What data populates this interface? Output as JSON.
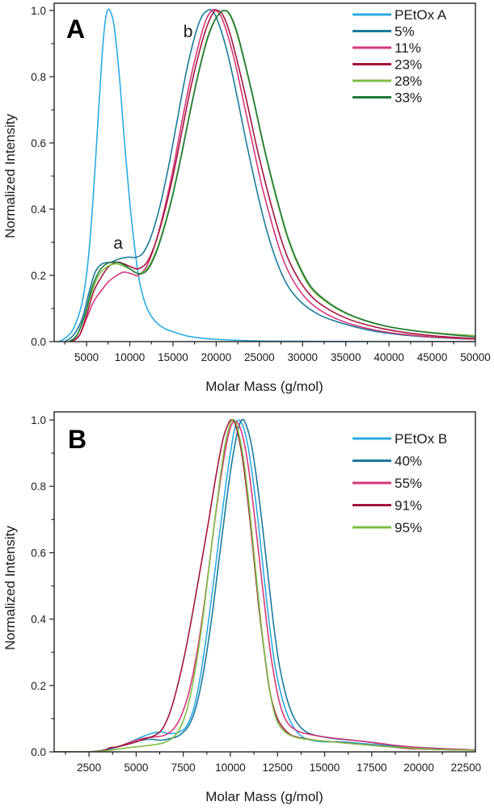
{
  "chart_data": [
    {
      "panel": "A",
      "type": "line",
      "title": "",
      "xlabel": "Molar Mass (g/mol)",
      "ylabel": "Normalized Intensity",
      "xlim": [
        1250,
        50000
      ],
      "ylim": [
        0,
        1.0
      ],
      "xticks": [
        5000,
        10000,
        15000,
        20000,
        25000,
        30000,
        35000,
        40000,
        45000,
        50000
      ],
      "xtick_labels": [
        "5000",
        "10000",
        "15000",
        "20000",
        "25000",
        "30000",
        "35000",
        "40000",
        "45000",
        "50000"
      ],
      "xminor": [
        2500,
        7500,
        12500,
        17500,
        22500,
        27500,
        32500,
        37500,
        42500,
        47500
      ],
      "yticks": [
        0.0,
        0.2,
        0.4,
        0.6,
        0.8,
        1.0
      ],
      "ytick_labels": [
        "0.0",
        "0.2",
        "0.4",
        "0.6",
        "0.8",
        "1.0"
      ],
      "yminor": [
        0.1,
        0.3,
        0.5,
        0.7,
        0.9
      ],
      "legend_position": "top-right",
      "annotations": [
        {
          "text": "A",
          "role": "panel-label",
          "position": "top-left"
        },
        {
          "text": "a",
          "x": 8100,
          "y": 0.28
        },
        {
          "text": "b",
          "x": 16200,
          "y": 0.92
        }
      ],
      "series": [
        {
          "name": "PEtOx A",
          "color": "#29ABE2",
          "x": [
            1800,
            2500,
            3500,
            4500,
            5200,
            5800,
            6400,
            6900,
            7300,
            7700,
            8200,
            8800,
            9400,
            10000,
            10500,
            11000,
            11600,
            12200,
            13000,
            14000,
            15000,
            17000,
            20000,
            25000,
            30000,
            40000,
            50000
          ],
          "y": [
            0.0,
            0.01,
            0.04,
            0.12,
            0.25,
            0.45,
            0.7,
            0.9,
            0.99,
            1.0,
            0.95,
            0.8,
            0.6,
            0.42,
            0.3,
            0.2,
            0.13,
            0.09,
            0.06,
            0.04,
            0.03,
            0.015,
            0.007,
            0.002,
            0.001,
            0.0,
            0.0
          ]
        },
        {
          "name": "5%",
          "color": "#1A7A9C",
          "x": [
            2500,
            3500,
            4500,
            5300,
            6000,
            6800,
            7800,
            8800,
            9800,
            10800,
            11600,
            12500,
            13500,
            14500,
            15500,
            16500,
            17500,
            18300,
            19000,
            19500,
            20000,
            20800,
            21600,
            22500,
            23500,
            24500,
            25500,
            26500,
            27500,
            28500,
            30000,
            32000,
            34000,
            36000,
            38000,
            40000,
            42000,
            45000,
            48000,
            50000
          ],
          "y": [
            0.0,
            0.02,
            0.07,
            0.15,
            0.21,
            0.235,
            0.24,
            0.25,
            0.255,
            0.255,
            0.27,
            0.32,
            0.41,
            0.53,
            0.67,
            0.81,
            0.92,
            0.98,
            1.0,
            1.0,
            0.98,
            0.92,
            0.84,
            0.73,
            0.6,
            0.48,
            0.37,
            0.28,
            0.21,
            0.16,
            0.115,
            0.08,
            0.06,
            0.045,
            0.033,
            0.025,
            0.019,
            0.013,
            0.009,
            0.008
          ]
        },
        {
          "name": "11%",
          "color": "#D6377A",
          "x": [
            3300,
            4200,
            5000,
            5800,
            6600,
            7500,
            8500,
            9300,
            10200,
            11000,
            12000,
            13000,
            14000,
            15000,
            16000,
            17000,
            18000,
            18800,
            19500,
            20000,
            20600,
            21400,
            22300,
            23200,
            24200,
            25200,
            26200,
            27200,
            28200,
            29500,
            31000,
            33000,
            35000,
            37000,
            39000,
            41000,
            44000,
            47000,
            50000
          ],
          "y": [
            0.0,
            0.02,
            0.07,
            0.12,
            0.15,
            0.18,
            0.2,
            0.21,
            0.205,
            0.2,
            0.23,
            0.3,
            0.4,
            0.52,
            0.66,
            0.79,
            0.9,
            0.97,
            1.0,
            1.0,
            0.98,
            0.92,
            0.83,
            0.72,
            0.6,
            0.48,
            0.38,
            0.29,
            0.22,
            0.16,
            0.115,
            0.08,
            0.058,
            0.043,
            0.032,
            0.024,
            0.016,
            0.011,
            0.007
          ]
        },
        {
          "name": "23%",
          "color": "#A3163C",
          "x": [
            3300,
            4200,
            5000,
            5800,
            6600,
            7500,
            8500,
            9300,
            10200,
            11000,
            12000,
            13000,
            14000,
            15000,
            16000,
            17000,
            18000,
            18900,
            19700,
            20200,
            20800,
            21600,
            22500,
            23500,
            24500,
            25500,
            26500,
            27500,
            28500,
            30000,
            31500,
            33500,
            35500,
            37500,
            39500,
            42000,
            45000,
            48000,
            50000
          ],
          "y": [
            0.0,
            0.02,
            0.08,
            0.15,
            0.19,
            0.225,
            0.24,
            0.235,
            0.225,
            0.22,
            0.24,
            0.3,
            0.39,
            0.5,
            0.63,
            0.76,
            0.87,
            0.95,
            0.995,
            1.0,
            0.985,
            0.93,
            0.84,
            0.73,
            0.61,
            0.5,
            0.4,
            0.31,
            0.24,
            0.17,
            0.125,
            0.09,
            0.066,
            0.05,
            0.038,
            0.027,
            0.018,
            0.012,
            0.009
          ]
        },
        {
          "name": "28%",
          "color": "#7DBE43",
          "x": [
            3000,
            3900,
            4800,
            5600,
            6400,
            7300,
            8300,
            9100,
            10000,
            11000,
            12000,
            13000,
            14000,
            15000,
            16000,
            17000,
            18000,
            19000,
            19800,
            20500,
            21000,
            21600,
            22400,
            23300,
            24300,
            25300,
            26300,
            27300,
            28300,
            29500,
            31000,
            33000,
            35000,
            37000,
            39000,
            41000,
            44000,
            47000,
            50000
          ],
          "y": [
            0.0,
            0.02,
            0.08,
            0.15,
            0.2,
            0.225,
            0.235,
            0.23,
            0.22,
            0.205,
            0.22,
            0.27,
            0.35,
            0.45,
            0.57,
            0.7,
            0.82,
            0.92,
            0.97,
            0.995,
            1.0,
            0.985,
            0.93,
            0.84,
            0.73,
            0.61,
            0.5,
            0.4,
            0.31,
            0.23,
            0.16,
            0.115,
            0.085,
            0.065,
            0.05,
            0.04,
            0.03,
            0.023,
            0.018
          ]
        },
        {
          "name": "33%",
          "color": "#1F7A3A",
          "x": [
            3000,
            3900,
            4800,
            5600,
            6400,
            7300,
            8300,
            9100,
            10000,
            11000,
            12000,
            13000,
            14000,
            15000,
            16000,
            17000,
            18000,
            19000,
            19800,
            20500,
            21000,
            21600,
            22400,
            23300,
            24300,
            25300,
            26300,
            27300,
            28300,
            29500,
            31000,
            33000,
            35000,
            37000,
            39000,
            41000,
            44000,
            47000,
            50000
          ],
          "y": [
            0.0,
            0.02,
            0.08,
            0.16,
            0.21,
            0.235,
            0.24,
            0.235,
            0.22,
            0.205,
            0.215,
            0.265,
            0.345,
            0.445,
            0.565,
            0.695,
            0.815,
            0.915,
            0.968,
            0.994,
            1.0,
            0.988,
            0.935,
            0.845,
            0.735,
            0.615,
            0.505,
            0.405,
            0.315,
            0.235,
            0.165,
            0.118,
            0.087,
            0.066,
            0.051,
            0.04,
            0.029,
            0.021,
            0.014
          ]
        }
      ]
    },
    {
      "panel": "B",
      "type": "line",
      "title": "",
      "xlabel": "Molar Mass (g/mol)",
      "ylabel": "Normalized Intensity",
      "xlim": [
        650,
        23000
      ],
      "ylim": [
        0,
        1.0
      ],
      "xticks": [
        2500,
        5000,
        7500,
        10000,
        12500,
        15000,
        17500,
        20000,
        22500
      ],
      "xtick_labels": [
        "2500",
        "5000",
        "7500",
        "10000",
        "12500",
        "15000",
        "17500",
        "20000",
        "22500"
      ],
      "xminor": [
        1250,
        3750,
        6250,
        8750,
        11250,
        13750,
        16250,
        18750,
        21250
      ],
      "yticks": [
        0.0,
        0.2,
        0.4,
        0.6,
        0.8,
        1.0
      ],
      "ytick_labels": [
        "0.0",
        "0.2",
        "0.4",
        "0.6",
        "0.8",
        "1.0"
      ],
      "yminor": [
        0.1,
        0.3,
        0.5,
        0.7,
        0.9
      ],
      "legend_position": "top-right",
      "annotations": [
        {
          "text": "B",
          "role": "panel-label",
          "position": "top-left"
        }
      ],
      "series": [
        {
          "name": "PEtOx B",
          "color": "#29ABE2",
          "x": [
            700,
            2500,
            3300,
            4000,
            4700,
            5300,
            5800,
            6300,
            6800,
            7300,
            7700,
            8100,
            8500,
            8900,
            9300,
            9700,
            10000,
            10300,
            10600,
            10900,
            11200,
            11500,
            11800,
            12100,
            12400,
            12800,
            13200,
            13700,
            14300,
            15000,
            16000,
            17000,
            18000,
            19000,
            20000,
            21000,
            23000
          ],
          "y": [
            0.0,
            0.0,
            0.005,
            0.015,
            0.03,
            0.045,
            0.055,
            0.06,
            0.055,
            0.06,
            0.08,
            0.14,
            0.26,
            0.42,
            0.6,
            0.78,
            0.9,
            0.99,
            0.99,
            0.93,
            0.82,
            0.68,
            0.52,
            0.37,
            0.25,
            0.15,
            0.09,
            0.05,
            0.035,
            0.03,
            0.03,
            0.025,
            0.02,
            0.015,
            0.012,
            0.008,
            0.005
          ]
        },
        {
          "name": "40%",
          "color": "#1A7A9C",
          "x": [
            700,
            2500,
            3300,
            4000,
            4700,
            5300,
            5800,
            6300,
            6800,
            7300,
            7800,
            8200,
            8600,
            9000,
            9400,
            9800,
            10100,
            10400,
            10600,
            10800,
            11100,
            11400,
            11700,
            12000,
            12300,
            12600,
            13000,
            13400,
            13900,
            14500,
            15500,
            16500,
            17500,
            18500,
            19500,
            20500,
            21500,
            23000
          ],
          "y": [
            0.0,
            0.0,
            0.005,
            0.015,
            0.025,
            0.035,
            0.038,
            0.035,
            0.04,
            0.05,
            0.08,
            0.14,
            0.25,
            0.4,
            0.58,
            0.76,
            0.88,
            0.97,
            1.0,
            0.99,
            0.93,
            0.82,
            0.68,
            0.53,
            0.38,
            0.26,
            0.16,
            0.1,
            0.065,
            0.05,
            0.04,
            0.035,
            0.028,
            0.02,
            0.015,
            0.012,
            0.009,
            0.006
          ]
        },
        {
          "name": "55%",
          "color": "#D6377A",
          "x": [
            700,
            2500,
            3300,
            3600,
            4000,
            4500,
            5000,
            5500,
            6000,
            6500,
            7000,
            7400,
            7800,
            8200,
            8600,
            9000,
            9400,
            9800,
            10100,
            10400,
            10700,
            11000,
            11300,
            11600,
            11900,
            12200,
            12600,
            13000,
            13500,
            14000,
            15000,
            16000,
            17000,
            18000,
            19000,
            20000,
            21000,
            23000
          ],
          "y": [
            0.0,
            0.0,
            0.005,
            0.012,
            0.015,
            0.025,
            0.035,
            0.042,
            0.045,
            0.05,
            0.07,
            0.11,
            0.18,
            0.29,
            0.44,
            0.62,
            0.79,
            0.93,
            0.99,
            0.99,
            0.94,
            0.84,
            0.7,
            0.55,
            0.4,
            0.27,
            0.15,
            0.09,
            0.065,
            0.055,
            0.045,
            0.038,
            0.032,
            0.025,
            0.018,
            0.013,
            0.01,
            0.006
          ]
        },
        {
          "name": "91%",
          "color": "#A3163C",
          "x": [
            700,
            2500,
            3300,
            3600,
            4000,
            4500,
            5000,
            5500,
            6000,
            6400,
            6800,
            7200,
            7600,
            8000,
            8400,
            8800,
            9200,
            9600,
            9900,
            10100,
            10300,
            10600,
            10900,
            11200,
            11500,
            11800,
            12100,
            12500,
            13000,
            13500,
            14500,
            15500,
            16500,
            17500,
            18500,
            19500,
            21000,
            23000
          ],
          "y": [
            0.0,
            0.0,
            0.005,
            0.012,
            0.015,
            0.022,
            0.03,
            0.04,
            0.05,
            0.07,
            0.12,
            0.2,
            0.3,
            0.42,
            0.55,
            0.68,
            0.82,
            0.94,
            0.99,
            1.0,
            0.98,
            0.9,
            0.77,
            0.61,
            0.44,
            0.3,
            0.18,
            0.1,
            0.06,
            0.045,
            0.035,
            0.03,
            0.025,
            0.02,
            0.015,
            0.01,
            0.007,
            0.005
          ]
        },
        {
          "name": "95%",
          "color": "#7DBE43",
          "x": [
            700,
            2500,
            3300,
            4000,
            4500,
            5000,
            5500,
            6000,
            6500,
            7000,
            7400,
            7800,
            8200,
            8600,
            9000,
            9400,
            9700,
            10000,
            10200,
            10400,
            10700,
            11000,
            11300,
            11600,
            11900,
            12200,
            12500,
            12900,
            13400,
            14000,
            15000,
            16000,
            17000,
            18000,
            19000,
            20000,
            21000,
            23000
          ],
          "y": [
            0.0,
            0.0,
            0.003,
            0.008,
            0.012,
            0.015,
            0.018,
            0.022,
            0.028,
            0.045,
            0.08,
            0.15,
            0.27,
            0.43,
            0.62,
            0.8,
            0.92,
            0.99,
            1.0,
            0.97,
            0.88,
            0.74,
            0.57,
            0.4,
            0.26,
            0.15,
            0.09,
            0.06,
            0.045,
            0.038,
            0.032,
            0.027,
            0.022,
            0.017,
            0.013,
            0.01,
            0.007,
            0.005
          ]
        }
      ]
    }
  ]
}
